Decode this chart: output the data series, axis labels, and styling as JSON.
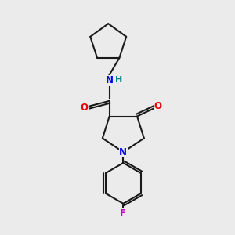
{
  "background_color": "#ebebeb",
  "bond_color": "#1a1a1a",
  "bond_width": 1.5,
  "atom_colors": {
    "N": "#0000ee",
    "O": "#ee0000",
    "F": "#cc00cc",
    "H": "#008888",
    "C": "#1a1a1a"
  },
  "font_size_atom": 8.5,
  "font_size_h": 8.0
}
